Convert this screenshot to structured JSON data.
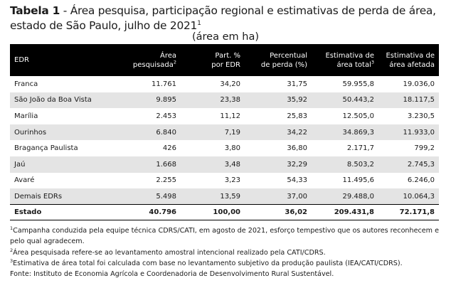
{
  "title": {
    "label": "Tabela 1",
    "dash": " - ",
    "text": "Área pesquisa, participação regional e estimativas de perda de área, estado de São Paulo, julho de 2021",
    "footnote": "1"
  },
  "unit": "(área em ha)",
  "table": {
    "headers": [
      {
        "l1": "EDR",
        "l2": "",
        "sup": ""
      },
      {
        "l1": "Área",
        "l2": "pesquisada",
        "sup": "2"
      },
      {
        "l1": "Part. %",
        "l2": "por EDR",
        "sup": ""
      },
      {
        "l1": "Percentual",
        "l2": "de perda (%)",
        "sup": ""
      },
      {
        "l1": "Estimativa de",
        "l2": "área total",
        "sup": "3"
      },
      {
        "l1": "Estimativa de",
        "l2": "área afetada",
        "sup": ""
      }
    ],
    "rows": [
      [
        "Franca",
        "11.761",
        "34,20",
        "31,75",
        "59.955,8",
        "19.036,0"
      ],
      [
        "São João da Boa Vista",
        "9.895",
        "23,38",
        "35,92",
        "50.443,2",
        "18.117,5"
      ],
      [
        "Marília",
        "2.453",
        "11,12",
        "25,83",
        "12.505,0",
        "3.230,5"
      ],
      [
        "Ourinhos",
        "6.840",
        "7,19",
        "34,22",
        "34.869,3",
        "11.933,0"
      ],
      [
        "Bragança Paulista",
        "426",
        "3,80",
        "36,80",
        "2.171,7",
        "799,2"
      ],
      [
        "Jaú",
        "1.668",
        "3,48",
        "32,29",
        "8.503,2",
        "2.745,3"
      ],
      [
        "Avaré",
        "2.255",
        "3,23",
        "54,33",
        "11.495,6",
        "6.246,0"
      ],
      [
        "Demais EDRs",
        "5.498",
        "13,59",
        "37,00",
        "29.488,0",
        "10.064,3"
      ]
    ],
    "total": [
      "Estado",
      "40.796",
      "100,00",
      "36,02",
      "209.431,8",
      "72.171,8"
    ]
  },
  "notes": [
    {
      "sup": "1",
      "text": "Campanha conduzida pela equipe técnica CDRS/CATI, em agosto de 2021, esforço tempestivo que os autores reconhecem e pelo qual agradecem."
    },
    {
      "sup": "2",
      "text": "Área pesquisada refere-se ao levantamento amostral intencional realizado pela CATI/CDRS."
    },
    {
      "sup": "3",
      "text": "Estimativa de área total foi calculada com base no levantamento subjetivo da produção paulista (IEA/CATI/CDRS)."
    },
    {
      "sup": "",
      "text": "Fonte: Instituto de Economia Agrícola e Coordenadoria de Desenvolvimento Rural Sustentável."
    }
  ],
  "colors": {
    "header_bg": "#000000",
    "header_text": "#ffffff",
    "stripe": "#e4e4e4"
  }
}
